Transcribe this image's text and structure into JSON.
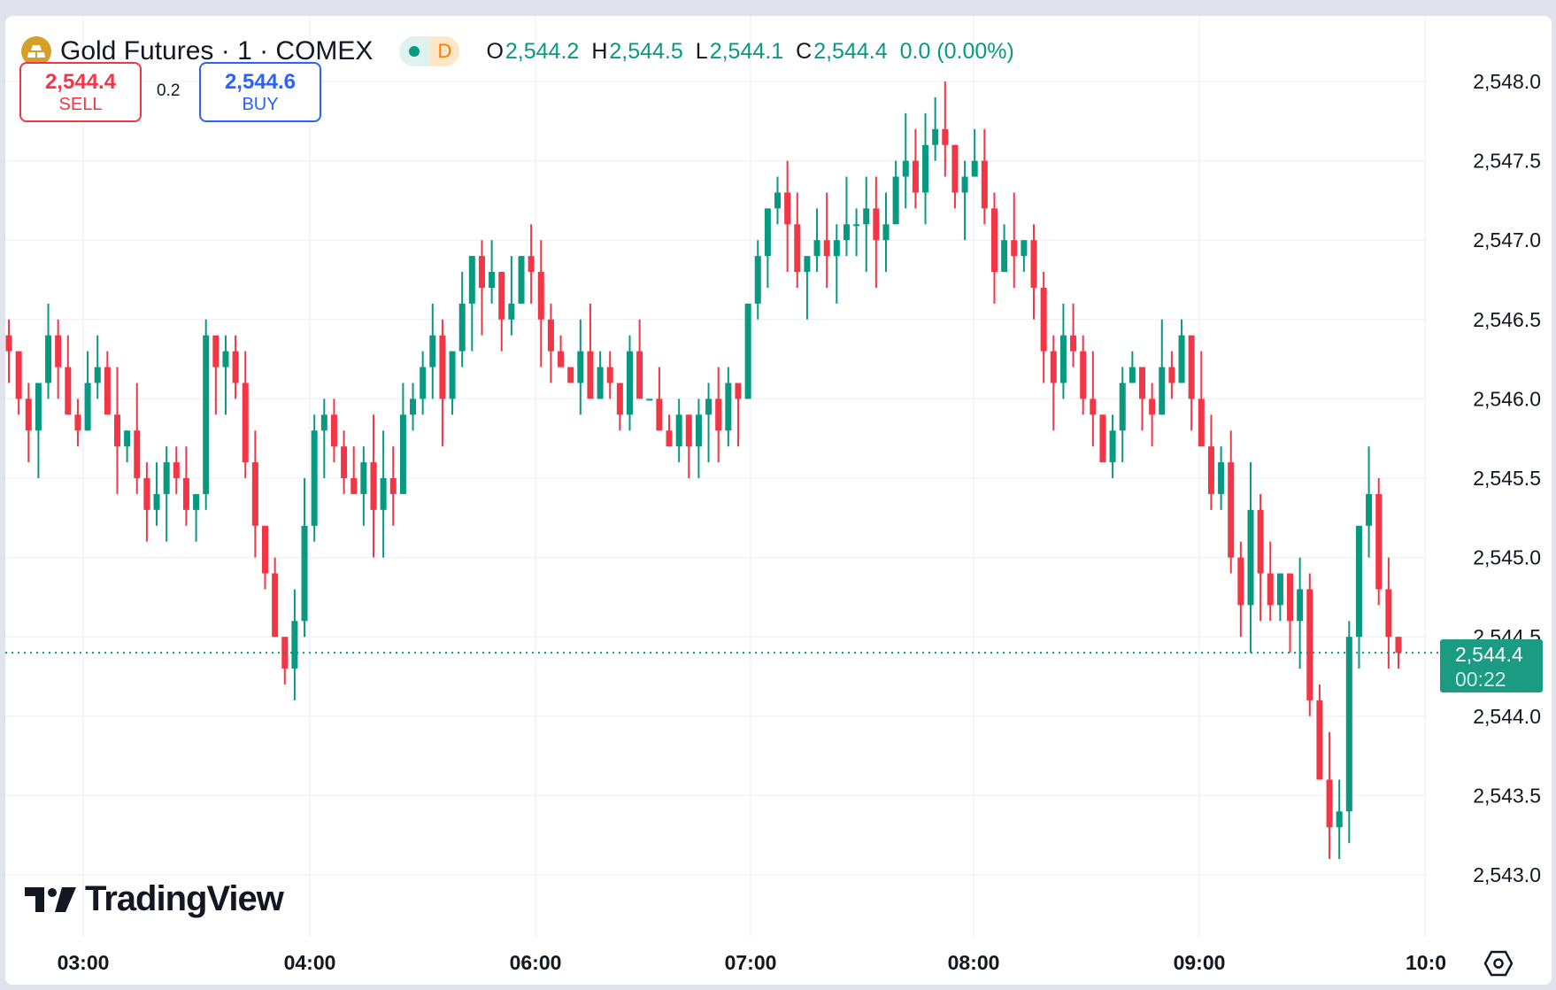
{
  "header": {
    "symbol_title": "Gold Futures · 1 · COMEX",
    "status_label": "D",
    "ohlc": {
      "o_label": "O",
      "o": "2,544.2",
      "h_label": "H",
      "h": "2,544.5",
      "l_label": "L",
      "l": "2,544.1",
      "c_label": "C",
      "c": "2,544.4",
      "change": "0.0 (0.00%)"
    }
  },
  "trade": {
    "sell_price": "2,544.4",
    "sell_label": "SELL",
    "spread": "0.2",
    "buy_price": "2,544.6",
    "buy_label": "BUY"
  },
  "watermark": "TradingView",
  "last_price": {
    "price": "2,544.4",
    "countdown": "00:22"
  },
  "colors": {
    "up": "#089981",
    "down": "#f23645",
    "accent": "#2962ff"
  },
  "chart_data": {
    "type": "candlestick",
    "interval": "1 minute",
    "y_ticks": [
      "2,548.0",
      "2,547.5",
      "2,547.0",
      "2,546.5",
      "2,546.0",
      "2,545.5",
      "2,545.0",
      "2,544.5",
      "2,544.0",
      "2,543.5",
      "2,543.0"
    ],
    "ylim": [
      2543.0,
      2548.0
    ],
    "x_ticks": [
      "03:00",
      "04:00",
      "06:00",
      "07:00",
      "08:00",
      "09:00",
      "10:0"
    ],
    "grid": true,
    "last_price": 2544.4,
    "closes": [
      2546.3,
      2546.0,
      2545.8,
      2546.1,
      2546.4,
      2546.2,
      2545.9,
      2545.8,
      2546.1,
      2546.2,
      2545.9,
      2545.7,
      2545.8,
      2545.5,
      2545.3,
      2545.4,
      2545.6,
      2545.5,
      2545.3,
      2545.4,
      2546.4,
      2546.2,
      2546.3,
      2546.1,
      2545.6,
      2545.2,
      2544.9,
      2544.5,
      2544.3,
      2544.6,
      2545.2,
      2545.8,
      2545.9,
      2545.7,
      2545.5,
      2545.4,
      2545.6,
      2545.3,
      2545.5,
      2545.4,
      2545.9,
      2546.0,
      2546.2,
      2546.4,
      2546.0,
      2546.3,
      2546.6,
      2546.9,
      2546.7,
      2546.8,
      2546.5,
      2546.6,
      2546.9,
      2546.8,
      2546.5,
      2546.3,
      2546.2,
      2546.1,
      2546.3,
      2546.0,
      2546.2,
      2546.1,
      2545.9,
      2546.3,
      2546.0,
      2546.0,
      2545.8,
      2545.7,
      2545.9,
      2545.7,
      2545.9,
      2546.0,
      2545.8,
      2546.1,
      2546.0,
      2546.6,
      2546.9,
      2547.2,
      2547.3,
      2547.1,
      2546.8,
      2546.9,
      2547.0,
      2546.9,
      2547.0,
      2547.1,
      2547.1,
      2547.2,
      2547.0,
      2547.1,
      2547.4,
      2547.5,
      2547.3,
      2547.6,
      2547.7,
      2547.6,
      2547.3,
      2547.4,
      2547.5,
      2547.2,
      2546.8,
      2547.0,
      2546.9,
      2547.0,
      2546.7,
      2546.3,
      2546.1,
      2546.4,
      2546.3,
      2546.0,
      2545.9,
      2545.6,
      2545.8,
      2546.1,
      2546.2,
      2546.0,
      2545.9,
      2546.2,
      2546.1,
      2546.4,
      2546.0,
      2545.7,
      2545.4,
      2545.6,
      2545.0,
      2544.7,
      2545.3,
      2544.9,
      2544.7,
      2544.9,
      2544.6,
      2544.8,
      2544.1,
      2543.6,
      2543.3,
      2543.4,
      2544.5,
      2545.2,
      2545.4,
      2544.8,
      2544.5,
      2544.4
    ]
  }
}
